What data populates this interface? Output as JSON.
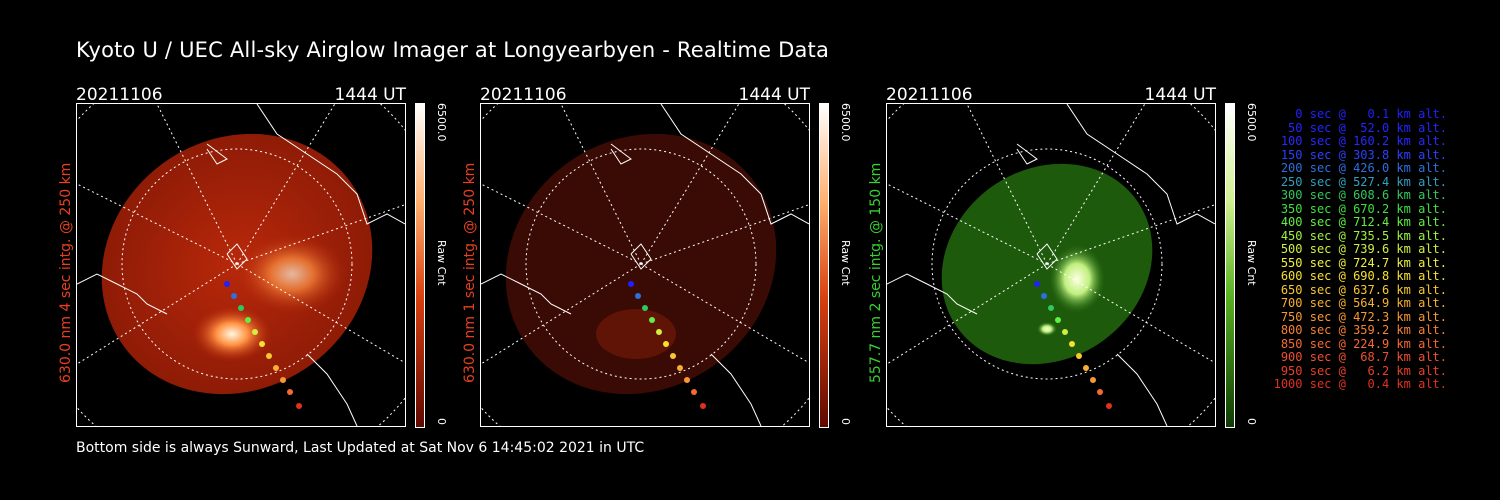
{
  "title": "Kyoto U / UEC All-sky Airglow Imager at Longyearbyen - Realtime Data",
  "footer": "Bottom side is always Sunward, Last Updated at Sat Nov  6 14:45:02 2021 in UTC",
  "panels": [
    {
      "date": "20211106",
      "time": "1444 UT",
      "ylabel": "630.0 nm 4 sec intg. @ 250 km",
      "label_color": "#e8401e",
      "cbar_max": "6500.0",
      "cbar_min": "0",
      "cbar_unit": "Raw Cnt",
      "color": "#d83a10"
    },
    {
      "date": "20211106",
      "time": "1444 UT",
      "ylabel": "630.0 nm 1 sec intg. @ 250 km",
      "label_color": "#e8401e",
      "cbar_max": "6500.0",
      "cbar_min": "0",
      "cbar_unit": "Raw Cnt",
      "color": "#d83a10"
    },
    {
      "date": "20211106",
      "time": "1444 UT",
      "ylabel": "557.7 nm 2 sec intg. @ 150 km",
      "label_color": "#38d030",
      "cbar_max": "6500.0",
      "cbar_min": "0",
      "cbar_unit": "Raw Cnt",
      "color": "#3aa81a"
    }
  ],
  "legend": [
    {
      "text": "0 sec @   0.1 km alt.",
      "color": "#2020ff"
    },
    {
      "text": "50 sec @  52.0 km alt.",
      "color": "#2424ff"
    },
    {
      "text": "100 sec @ 160.2 km alt.",
      "color": "#2828ff"
    },
    {
      "text": "150 sec @ 303.8 km alt.",
      "color": "#2c40ff"
    },
    {
      "text": "200 sec @ 426.0 km alt.",
      "color": "#2c70e0"
    },
    {
      "text": "250 sec @ 527.4 km alt.",
      "color": "#30a0c0"
    },
    {
      "text": "300 sec @ 608.6 km alt.",
      "color": "#30c860"
    },
    {
      "text": "350 sec @ 670.2 km alt.",
      "color": "#40e040"
    },
    {
      "text": "400 sec @ 712.4 km alt.",
      "color": "#60f040"
    },
    {
      "text": "450 sec @ 735.5 km alt.",
      "color": "#a0f040"
    },
    {
      "text": "500 sec @ 739.6 km alt.",
      "color": "#d0f040"
    },
    {
      "text": "550 sec @ 724.7 km alt.",
      "color": "#f0f040"
    },
    {
      "text": "600 sec @ 690.8 km alt.",
      "color": "#f8e030"
    },
    {
      "text": "650 sec @ 637.6 km alt.",
      "color": "#f8c830"
    },
    {
      "text": "700 sec @ 564.9 km alt.",
      "color": "#f8b030"
    },
    {
      "text": "750 sec @ 472.3 km alt.",
      "color": "#f89830"
    },
    {
      "text": "800 sec @ 359.2 km alt.",
      "color": "#f88030"
    },
    {
      "text": "850 sec @ 224.9 km alt.",
      "color": "#f86830"
    },
    {
      "text": "900 sec @  68.7 km alt.",
      "color": "#f05030"
    },
    {
      "text": "950 sec @   6.2 km alt.",
      "color": "#e84028"
    },
    {
      "text": "1000 sec @   0.4 km alt.",
      "color": "#e03020"
    }
  ]
}
